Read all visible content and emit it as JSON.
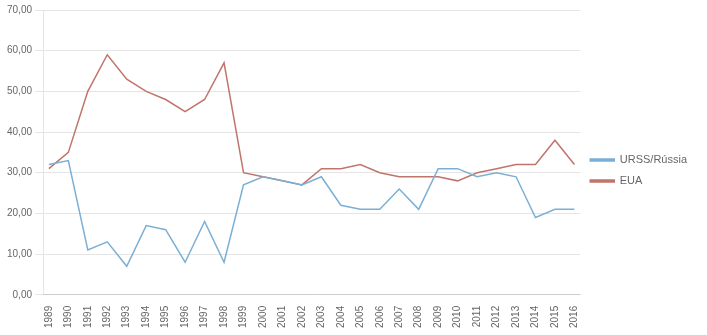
{
  "chart_data": {
    "type": "line",
    "x": [
      1989,
      1990,
      1991,
      1992,
      1993,
      1994,
      1995,
      1996,
      1997,
      1998,
      1999,
      2000,
      2001,
      2002,
      2003,
      2004,
      2005,
      2006,
      2007,
      2008,
      2009,
      2010,
      2011,
      2012,
      2013,
      2014,
      2015,
      2016
    ],
    "series": [
      {
        "name": "URSS/Rússia",
        "color": "#7bafd4",
        "values": [
          32,
          33,
          11,
          13,
          7,
          17,
          16,
          8,
          18,
          8,
          27,
          29,
          28,
          27,
          29,
          22,
          21,
          21,
          26,
          21,
          31,
          31,
          29,
          30,
          29,
          19,
          21,
          21
        ]
      },
      {
        "name": "EUA",
        "color": "#c0756b",
        "values": [
          31,
          35,
          50,
          59,
          53,
          50,
          48,
          45,
          48,
          57,
          30,
          29,
          28,
          27,
          31,
          31,
          32,
          30,
          29,
          29,
          29,
          28,
          30,
          31,
          32,
          32,
          38,
          32
        ]
      }
    ],
    "xlim": [
      1988.7,
      2016.3
    ],
    "xticks": [
      1989,
      1990,
      1991,
      1992,
      1993,
      1994,
      1995,
      1996,
      1997,
      1998,
      1999,
      2000,
      2001,
      2002,
      2003,
      2004,
      2005,
      2006,
      2007,
      2008,
      2009,
      2010,
      2011,
      2012,
      2013,
      2014,
      2015,
      2016
    ],
    "ylim": [
      0,
      70
    ],
    "yticks": [
      {
        "value": 0,
        "label": "0,00"
      },
      {
        "value": 10,
        "label": "10,00"
      },
      {
        "value": 20,
        "label": "20,00"
      },
      {
        "value": 30,
        "label": "30,00"
      },
      {
        "value": 40,
        "label": "40,00"
      },
      {
        "value": 50,
        "label": "50,00"
      },
      {
        "value": 60,
        "label": "60,00"
      },
      {
        "value": 70,
        "label": "70,00"
      }
    ],
    "grid": "y",
    "legend": "right"
  }
}
